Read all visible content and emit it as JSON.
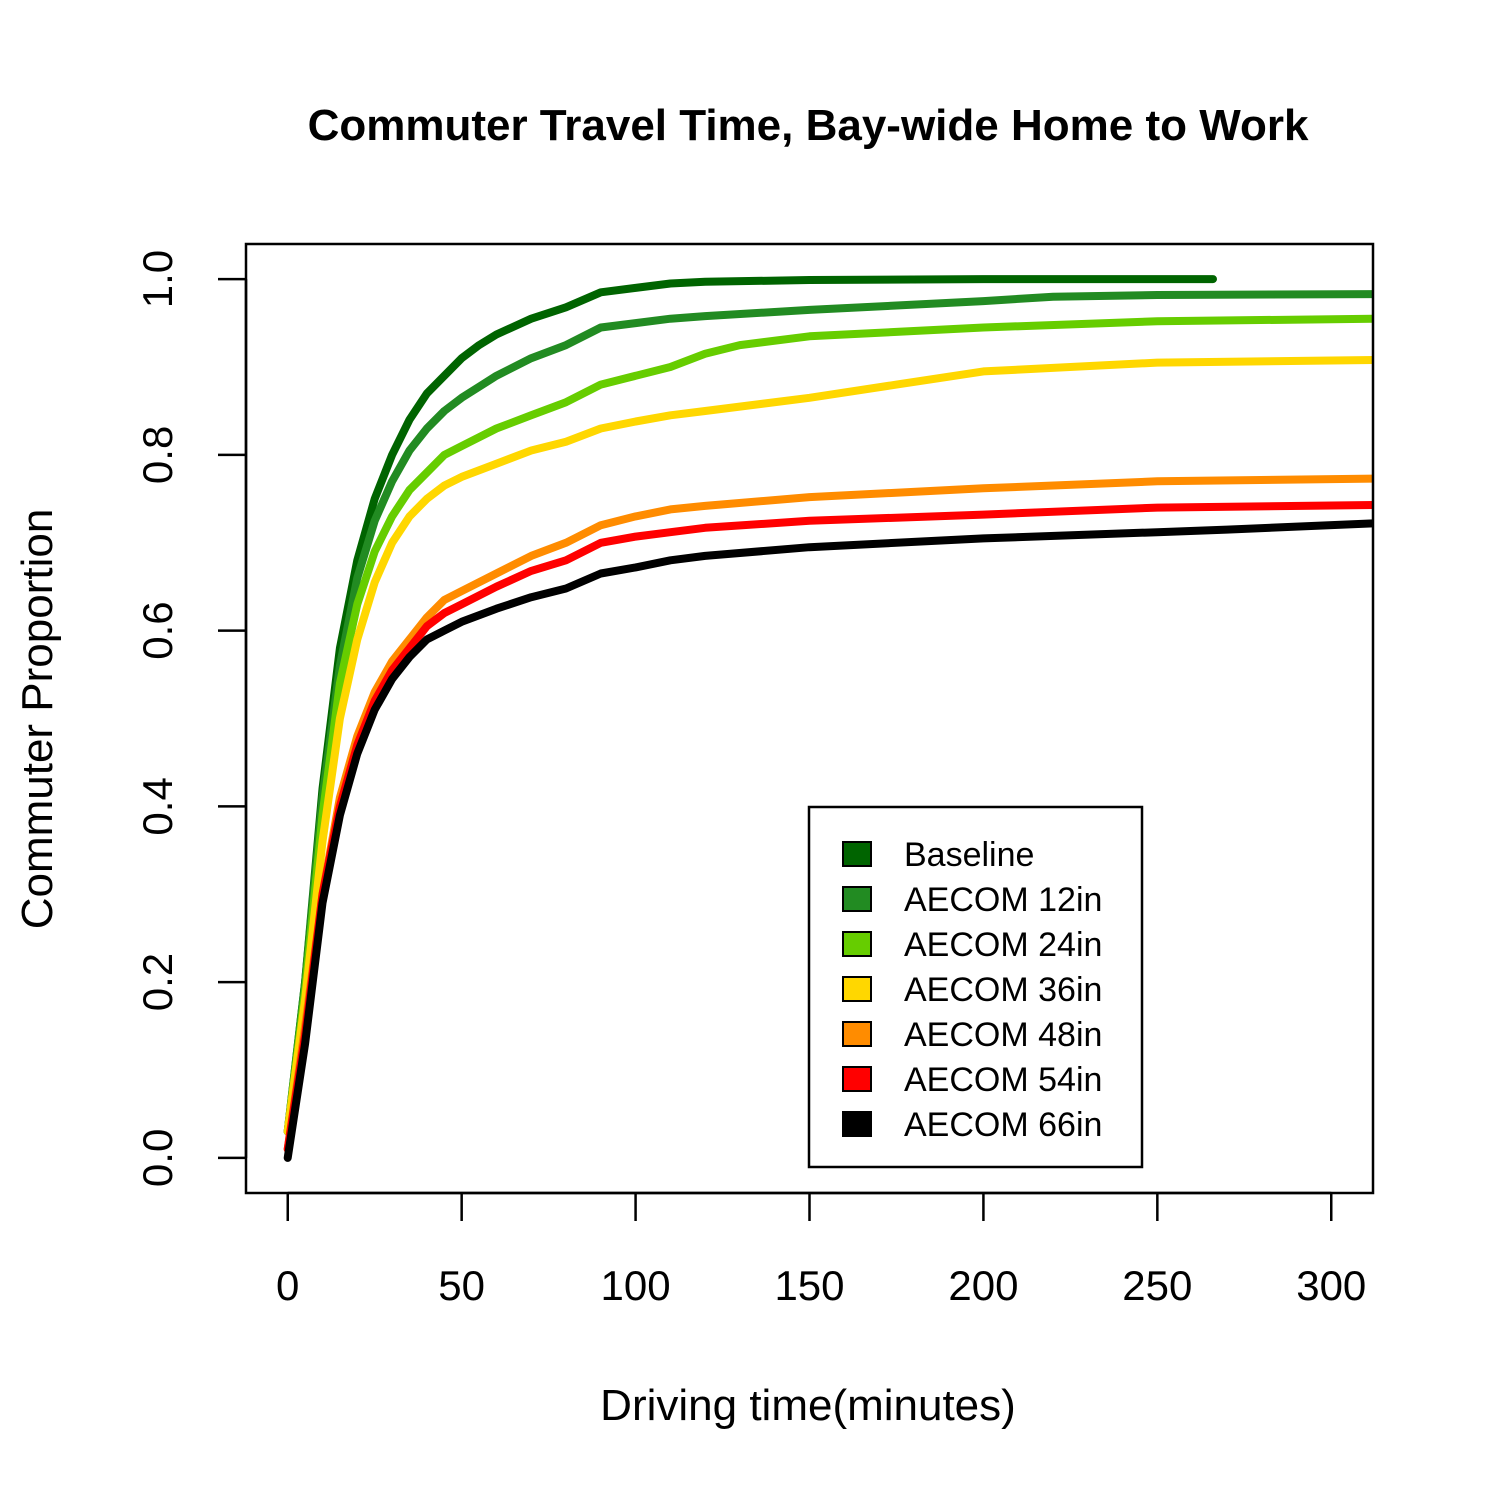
{
  "chart_data": {
    "type": "line",
    "title": "Commuter Travel Time, Bay-wide Home to Work",
    "xlabel": "Driving time(minutes)",
    "ylabel": "Commuter Proportion",
    "xlim": [
      -12,
      312
    ],
    "ylim": [
      -0.04,
      1.04
    ],
    "xticks": [
      0,
      50,
      100,
      150,
      200,
      250,
      300
    ],
    "xtick_labels": [
      "0",
      "50",
      "100",
      "150",
      "200",
      "250",
      "300"
    ],
    "yticks": [
      0.0,
      0.2,
      0.4,
      0.6,
      0.8,
      1.0
    ],
    "ytick_labels": [
      "0.0",
      "0.2",
      "0.4",
      "0.6",
      "0.8",
      "1.0"
    ],
    "grid": false,
    "legend_position": "bottom-right",
    "series": [
      {
        "name": "Baseline",
        "color": "#006400",
        "x": [
          0,
          5,
          10,
          15,
          20,
          25,
          30,
          35,
          40,
          45,
          50,
          55,
          60,
          70,
          80,
          90,
          100,
          110,
          120,
          150,
          200,
          266
        ],
        "y": [
          0.03,
          0.2,
          0.42,
          0.58,
          0.68,
          0.75,
          0.8,
          0.84,
          0.87,
          0.89,
          0.91,
          0.925,
          0.937,
          0.955,
          0.968,
          0.985,
          0.99,
          0.995,
          0.997,
          0.999,
          1.0,
          1.0
        ]
      },
      {
        "name": "AECOM 12in",
        "color": "#228B22",
        "x": [
          0,
          5,
          10,
          15,
          20,
          25,
          30,
          35,
          40,
          45,
          50,
          60,
          70,
          80,
          90,
          100,
          110,
          120,
          150,
          200,
          220,
          250,
          312
        ],
        "y": [
          0.03,
          0.2,
          0.41,
          0.56,
          0.66,
          0.725,
          0.77,
          0.805,
          0.83,
          0.85,
          0.865,
          0.89,
          0.91,
          0.925,
          0.945,
          0.95,
          0.955,
          0.958,
          0.965,
          0.975,
          0.98,
          0.982,
          0.983
        ]
      },
      {
        "name": "AECOM 24in",
        "color": "#66CD00",
        "x": [
          0,
          5,
          10,
          15,
          20,
          25,
          30,
          35,
          40,
          45,
          50,
          60,
          70,
          80,
          90,
          100,
          110,
          120,
          130,
          150,
          175,
          200,
          250,
          312
        ],
        "y": [
          0.03,
          0.19,
          0.39,
          0.54,
          0.63,
          0.69,
          0.73,
          0.76,
          0.78,
          0.8,
          0.81,
          0.83,
          0.845,
          0.86,
          0.88,
          0.89,
          0.9,
          0.915,
          0.925,
          0.935,
          0.94,
          0.945,
          0.952,
          0.955
        ]
      },
      {
        "name": "AECOM 36in",
        "color": "#FFD700",
        "x": [
          0,
          5,
          10,
          15,
          20,
          25,
          30,
          35,
          40,
          45,
          50,
          60,
          70,
          80,
          90,
          100,
          110,
          120,
          150,
          175,
          200,
          250,
          312
        ],
        "y": [
          0.03,
          0.18,
          0.36,
          0.5,
          0.59,
          0.655,
          0.7,
          0.73,
          0.75,
          0.765,
          0.775,
          0.79,
          0.805,
          0.815,
          0.83,
          0.838,
          0.845,
          0.85,
          0.865,
          0.88,
          0.895,
          0.905,
          0.908
        ]
      },
      {
        "name": "AECOM 48in",
        "color": "#FF8C00",
        "x": [
          0,
          5,
          10,
          15,
          20,
          25,
          30,
          35,
          40,
          45,
          50,
          60,
          70,
          80,
          90,
          100,
          110,
          120,
          150,
          200,
          250,
          312
        ],
        "y": [
          0.01,
          0.15,
          0.3,
          0.41,
          0.48,
          0.53,
          0.565,
          0.59,
          0.615,
          0.635,
          0.645,
          0.665,
          0.685,
          0.7,
          0.72,
          0.73,
          0.738,
          0.742,
          0.752,
          0.762,
          0.77,
          0.773
        ]
      },
      {
        "name": "AECOM 54in",
        "color": "#FF0000",
        "x": [
          0,
          5,
          10,
          15,
          20,
          25,
          30,
          35,
          40,
          45,
          50,
          60,
          70,
          80,
          90,
          100,
          110,
          120,
          150,
          200,
          250,
          312
        ],
        "y": [
          0.01,
          0.14,
          0.3,
          0.4,
          0.47,
          0.52,
          0.555,
          0.58,
          0.605,
          0.62,
          0.63,
          0.65,
          0.668,
          0.68,
          0.7,
          0.707,
          0.712,
          0.717,
          0.725,
          0.732,
          0.74,
          0.743
        ]
      },
      {
        "name": "AECOM 66in",
        "color": "#000000",
        "x": [
          0,
          5,
          10,
          15,
          20,
          25,
          30,
          35,
          40,
          45,
          50,
          60,
          70,
          80,
          90,
          100,
          110,
          120,
          150,
          200,
          250,
          270,
          312
        ],
        "y": [
          0.0,
          0.13,
          0.29,
          0.39,
          0.46,
          0.51,
          0.545,
          0.57,
          0.59,
          0.6,
          0.61,
          0.625,
          0.638,
          0.648,
          0.665,
          0.672,
          0.68,
          0.685,
          0.695,
          0.705,
          0.712,
          0.715,
          0.722
        ]
      }
    ]
  }
}
